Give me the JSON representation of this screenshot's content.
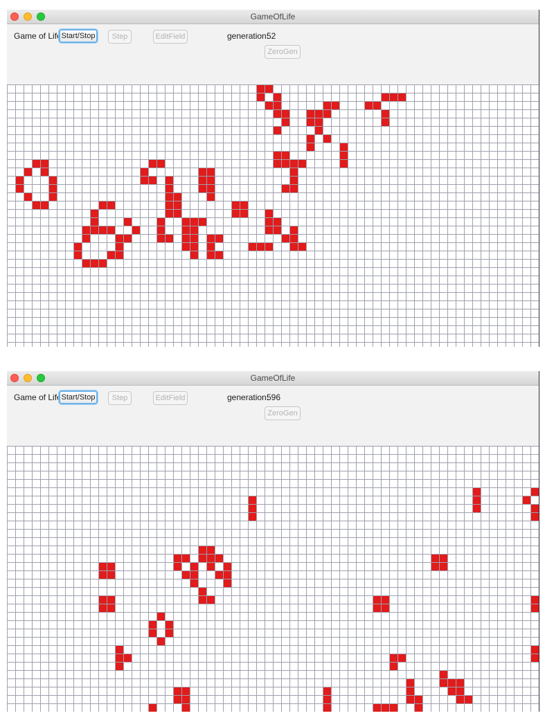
{
  "windows": [
    {
      "title": "GameOfLife",
      "app_label": "Game of Life",
      "buttons": {
        "start_stop": "Start/Stop",
        "step": "Step",
        "edit_field": "EditField",
        "zero_gen": "ZeroGen"
      },
      "generation_label": "generation:",
      "generation": "52",
      "live_cells": [
        [
          0,
          30
        ],
        [
          0,
          31
        ],
        [
          1,
          30
        ],
        [
          1,
          32
        ],
        [
          2,
          31
        ],
        [
          2,
          32
        ],
        [
          3,
          32
        ],
        [
          3,
          33
        ],
        [
          4,
          33
        ],
        [
          5,
          32
        ],
        [
          4,
          36
        ],
        [
          4,
          37
        ],
        [
          5,
          37
        ],
        [
          6,
          38
        ],
        [
          1,
          45
        ],
        [
          1,
          46
        ],
        [
          1,
          47
        ],
        [
          2,
          43
        ],
        [
          2,
          44
        ],
        [
          3,
          45
        ],
        [
          4,
          45
        ],
        [
          3,
          36
        ],
        [
          3,
          37
        ],
        [
          3,
          38
        ],
        [
          2,
          38
        ],
        [
          2,
          39
        ],
        [
          7,
          40
        ],
        [
          8,
          40
        ],
        [
          9,
          40
        ],
        [
          6,
          36
        ],
        [
          7,
          36
        ],
        [
          8,
          32
        ],
        [
          8,
          33
        ],
        [
          9,
          32
        ],
        [
          9,
          33
        ],
        [
          9,
          34
        ],
        [
          9,
          35
        ],
        [
          10,
          34
        ],
        [
          11,
          34
        ],
        [
          12,
          33
        ],
        [
          12,
          34
        ],
        [
          9,
          3
        ],
        [
          9,
          4
        ],
        [
          10,
          2
        ],
        [
          10,
          4
        ],
        [
          11,
          1
        ],
        [
          11,
          5
        ],
        [
          12,
          1
        ],
        [
          12,
          5
        ],
        [
          13,
          2
        ],
        [
          13,
          5
        ],
        [
          14,
          3
        ],
        [
          14,
          4
        ],
        [
          9,
          17
        ],
        [
          9,
          18
        ],
        [
          10,
          16
        ],
        [
          11,
          16
        ],
        [
          11,
          17
        ],
        [
          11,
          19
        ],
        [
          12,
          19
        ],
        [
          13,
          19
        ],
        [
          14,
          19
        ],
        [
          15,
          19
        ],
        [
          16,
          18
        ],
        [
          17,
          18
        ],
        [
          18,
          18
        ],
        [
          18,
          19
        ],
        [
          10,
          23
        ],
        [
          11,
          23
        ],
        [
          10,
          24
        ],
        [
          11,
          24
        ],
        [
          12,
          23
        ],
        [
          12,
          24
        ],
        [
          13,
          24
        ],
        [
          14,
          11
        ],
        [
          14,
          12
        ],
        [
          15,
          10
        ],
        [
          16,
          10
        ],
        [
          16,
          14
        ],
        [
          17,
          9
        ],
        [
          17,
          10
        ],
        [
          17,
          11
        ],
        [
          17,
          12
        ],
        [
          17,
          15
        ],
        [
          18,
          9
        ],
        [
          18,
          13
        ],
        [
          18,
          14
        ],
        [
          19,
          8
        ],
        [
          19,
          13
        ],
        [
          20,
          8
        ],
        [
          20,
          12
        ],
        [
          20,
          13
        ],
        [
          21,
          9
        ],
        [
          21,
          10
        ],
        [
          21,
          11
        ],
        [
          13,
          20
        ],
        [
          14,
          20
        ],
        [
          15,
          20
        ],
        [
          16,
          21
        ],
        [
          16,
          22
        ],
        [
          16,
          23
        ],
        [
          14,
          27
        ],
        [
          14,
          28
        ],
        [
          15,
          27
        ],
        [
          15,
          28
        ],
        [
          15,
          31
        ],
        [
          16,
          31
        ],
        [
          17,
          31
        ],
        [
          16,
          32
        ],
        [
          17,
          32
        ],
        [
          18,
          33
        ],
        [
          17,
          34
        ],
        [
          18,
          34
        ],
        [
          19,
          34
        ],
        [
          19,
          35
        ],
        [
          19,
          29
        ],
        [
          19,
          30
        ],
        [
          19,
          31
        ],
        [
          17,
          21
        ],
        [
          18,
          21
        ],
        [
          19,
          21
        ],
        [
          17,
          22
        ],
        [
          18,
          22
        ],
        [
          19,
          22
        ],
        [
          20,
          22
        ],
        [
          18,
          24
        ],
        [
          18,
          25
        ],
        [
          19,
          24
        ],
        [
          20,
          24
        ],
        [
          20,
          25
        ]
      ]
    },
    {
      "title": "GameOfLife",
      "app_label": "Game of Life",
      "buttons": {
        "start_stop": "Start/Stop",
        "step": "Step",
        "edit_field": "EditField",
        "zero_gen": "ZeroGen"
      },
      "generation_label": "generation:",
      "generation": "596",
      "live_cells": [
        [
          6,
          29
        ],
        [
          7,
          29
        ],
        [
          8,
          29
        ],
        [
          5,
          56
        ],
        [
          6,
          56
        ],
        [
          7,
          56
        ],
        [
          5,
          63
        ],
        [
          5,
          64
        ],
        [
          6,
          62
        ],
        [
          6,
          64
        ],
        [
          7,
          63
        ],
        [
          7,
          64
        ],
        [
          8,
          63
        ],
        [
          12,
          23
        ],
        [
          12,
          24
        ],
        [
          13,
          23
        ],
        [
          13,
          24
        ],
        [
          13,
          25
        ],
        [
          14,
          24
        ],
        [
          14,
          26
        ],
        [
          15,
          25
        ],
        [
          15,
          26
        ],
        [
          16,
          26
        ],
        [
          13,
          20
        ],
        [
          13,
          21
        ],
        [
          14,
          20
        ],
        [
          14,
          22
        ],
        [
          15,
          21
        ],
        [
          15,
          22
        ],
        [
          16,
          22
        ],
        [
          17,
          23
        ],
        [
          18,
          23
        ],
        [
          18,
          24
        ],
        [
          14,
          11
        ],
        [
          14,
          12
        ],
        [
          15,
          11
        ],
        [
          15,
          12
        ],
        [
          18,
          11
        ],
        [
          18,
          12
        ],
        [
          19,
          11
        ],
        [
          19,
          12
        ],
        [
          13,
          51
        ],
        [
          13,
          52
        ],
        [
          14,
          51
        ],
        [
          14,
          52
        ],
        [
          18,
          44
        ],
        [
          18,
          45
        ],
        [
          19,
          44
        ],
        [
          19,
          45
        ],
        [
          18,
          63
        ],
        [
          19,
          63
        ],
        [
          19,
          64
        ],
        [
          20,
          18
        ],
        [
          21,
          17
        ],
        [
          21,
          19
        ],
        [
          22,
          17
        ],
        [
          22,
          19
        ],
        [
          23,
          18
        ],
        [
          24,
          13
        ],
        [
          25,
          13
        ],
        [
          25,
          14
        ],
        [
          26,
          13
        ],
        [
          24,
          63
        ],
        [
          24,
          64
        ],
        [
          25,
          63
        ],
        [
          25,
          64
        ],
        [
          25,
          46
        ],
        [
          25,
          47
        ],
        [
          26,
          46
        ],
        [
          27,
          52
        ],
        [
          28,
          52
        ],
        [
          28,
          53
        ],
        [
          28,
          54
        ],
        [
          29,
          53
        ],
        [
          29,
          54
        ],
        [
          30,
          54
        ],
        [
          30,
          55
        ],
        [
          28,
          48
        ],
        [
          29,
          48
        ],
        [
          30,
          48
        ],
        [
          30,
          49
        ],
        [
          29,
          38
        ],
        [
          30,
          38
        ],
        [
          31,
          38
        ],
        [
          31,
          44
        ],
        [
          31,
          45
        ],
        [
          31,
          46
        ],
        [
          31,
          49
        ],
        [
          32,
          49
        ],
        [
          32,
          50
        ],
        [
          33,
          49
        ],
        [
          29,
          20
        ],
        [
          29,
          21
        ],
        [
          30,
          20
        ],
        [
          30,
          21
        ],
        [
          31,
          17
        ],
        [
          32,
          17
        ],
        [
          33,
          17
        ],
        [
          31,
          21
        ],
        [
          32,
          21
        ],
        [
          33,
          21
        ],
        [
          32,
          18
        ],
        [
          32,
          22
        ],
        [
          34,
          19
        ],
        [
          34,
          20
        ],
        [
          34,
          21
        ],
        [
          35,
          32
        ],
        [
          35,
          33
        ],
        [
          35,
          34
        ]
      ]
    }
  ]
}
